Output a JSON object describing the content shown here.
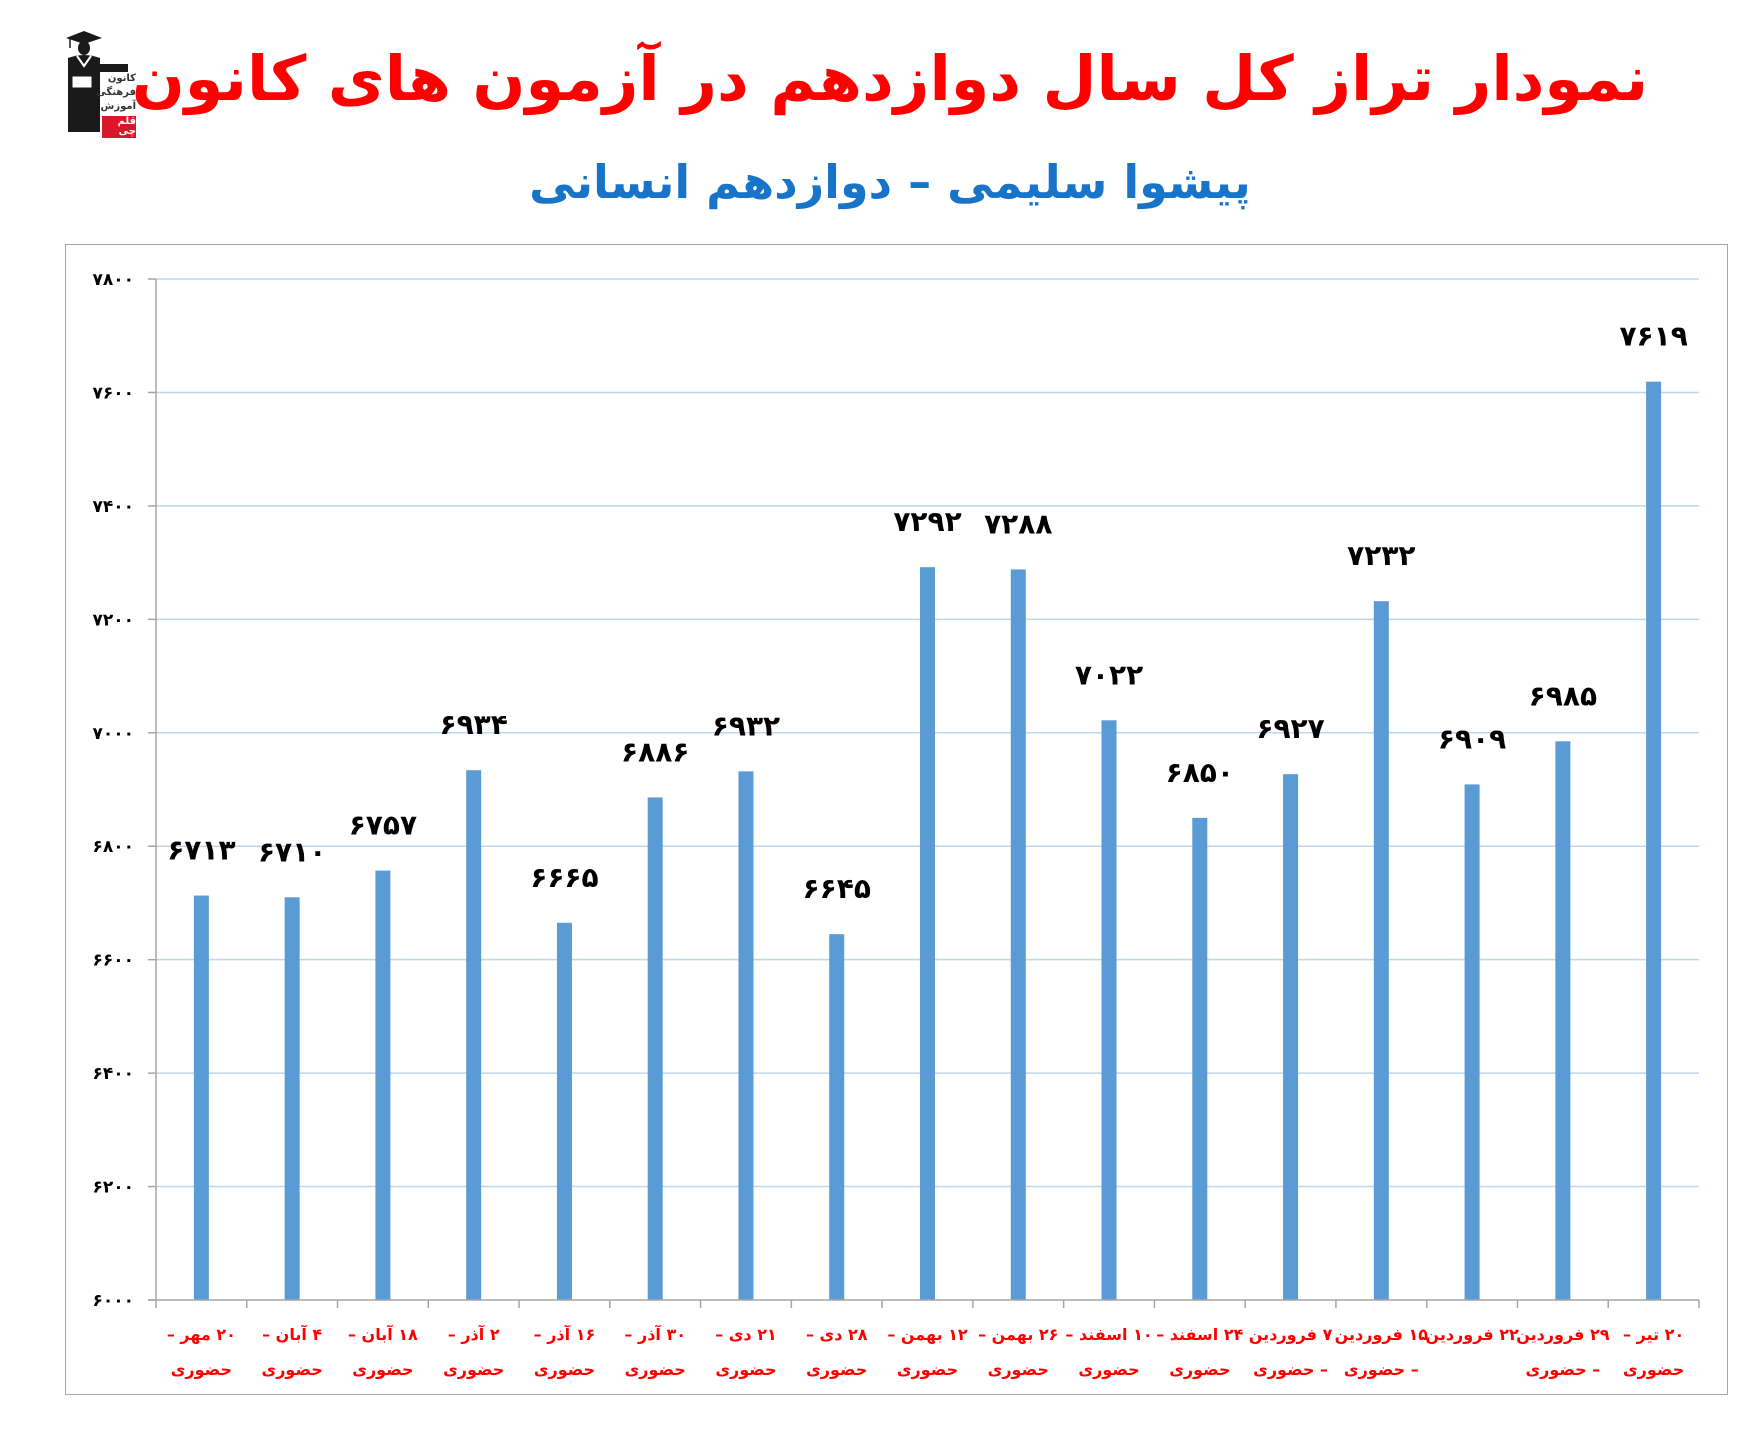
{
  "header": {
    "logo": {
      "lines": [
        "کانون",
        "فرهنگی",
        "آموزش",
        "قلم چی"
      ]
    },
    "title": "نمودار تراز کل سال دوازدهم در آزمون های کانون",
    "subtitle": "پیشوا سلیمی – دوازدهم انسانی"
  },
  "colors": {
    "title": "#ff0000",
    "subtitle": "#1774c8",
    "bar": "#5b9bd5",
    "gridline": "#bdd7ee",
    "axis": "#a6a6a6",
    "category_label": "#ff0000",
    "value_label": "#000000"
  },
  "chart_data": {
    "type": "bar",
    "title": "نمودار تراز کل سال دوازدهم در آزمون های کانون",
    "subtitle": "پیشوا سلیمی – دوازدهم انسانی",
    "xlabel": "",
    "ylabel": "",
    "ylim": [
      6000,
      7800
    ],
    "yticks": [
      6000,
      6200,
      6400,
      6600,
      6800,
      7000,
      7200,
      7400,
      7600,
      7800
    ],
    "ytick_labels": [
      "۶۰۰۰",
      "۶۲۰۰",
      "۶۴۰۰",
      "۶۶۰۰",
      "۶۸۰۰",
      "۷۰۰۰",
      "۷۲۰۰",
      "۷۴۰۰",
      "۷۶۰۰",
      "۷۸۰۰"
    ],
    "grid": true,
    "legend": null,
    "categories": [
      [
        "۲۰ مهر –",
        "حضوری"
      ],
      [
        "۴ آبان –",
        "حضوری"
      ],
      [
        "۱۸ آبان –",
        "حضوری"
      ],
      [
        "۲ آذر –",
        "حضوری"
      ],
      [
        "۱۶ آذر –",
        "حضوری"
      ],
      [
        "۳۰ آذر –",
        "حضوری"
      ],
      [
        "۲۱ دی –",
        "حضوری"
      ],
      [
        "۲۸ دی –",
        "حضوری"
      ],
      [
        "۱۲ بهمن –",
        "حضوری"
      ],
      [
        "۲۶ بهمن –",
        "حضوری"
      ],
      [
        "۱۰ اسفند –",
        "حضوری"
      ],
      [
        "۲۴ اسفند –",
        "حضوری"
      ],
      [
        "۷ فروردین",
        "– حضوری"
      ],
      [
        "۱۵ فروردین",
        "– حضوری"
      ],
      [
        "۲۲ فروردین",
        ""
      ],
      [
        "۲۹ فروردین",
        "– حضوری"
      ],
      [
        "۲۰ تیر –",
        "حضوری"
      ]
    ],
    "values": [
      6713,
      6710,
      6757,
      6934,
      6665,
      6886,
      6932,
      6645,
      7292,
      7288,
      7022,
      6850,
      6927,
      7232,
      6909,
      6985,
      7619
    ],
    "value_labels": [
      "۶۷۱۳",
      "۶۷۱۰",
      "۶۷۵۷",
      "۶۹۳۴",
      "۶۶۶۵",
      "۶۸۸۶",
      "۶۹۳۲",
      "۶۶۴۵",
      "۷۲۹۲",
      "۷۲۸۸",
      "۷۰۲۲",
      "۶۸۵۰",
      "۶۹۲۷",
      "۷۲۳۲",
      "۶۹۰۹",
      "۶۹۸۵",
      "۷۶۱۹"
    ]
  }
}
